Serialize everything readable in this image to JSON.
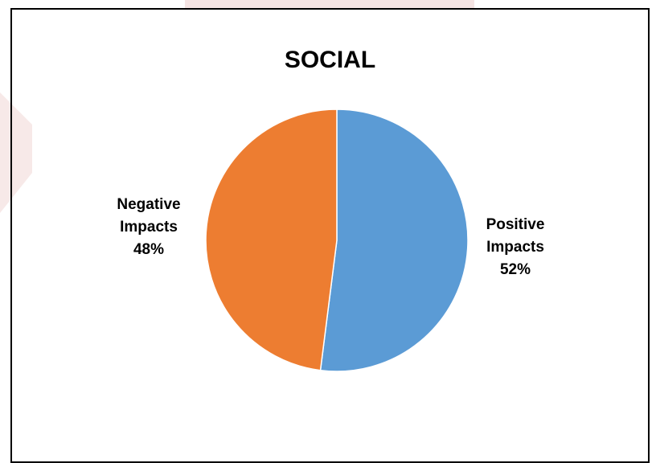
{
  "colors": {
    "positive": "#5B9BD5",
    "negative": "#ED7D31",
    "watermark": "#C0504D"
  },
  "chart_data": {
    "type": "pie",
    "title": "SOCIAL",
    "start_angle_deg": 0,
    "direction": "clockwise",
    "slices": [
      {
        "name_line1": "Positive",
        "name_line2": "Impacts",
        "value": 52,
        "value_label": "52%",
        "color": "#5B9BD5"
      },
      {
        "name_line1": "Negative",
        "name_line2": "Impacts",
        "value": 48,
        "value_label": "48%",
        "color": "#ED7D31"
      }
    ],
    "legend": "none",
    "labels_position": "outside"
  }
}
